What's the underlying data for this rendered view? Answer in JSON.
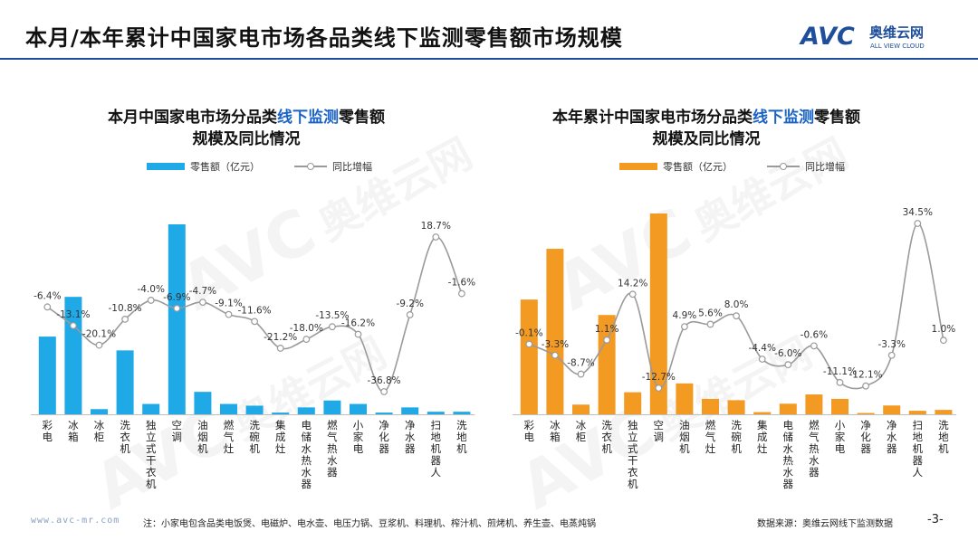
{
  "header": {
    "title": "本月/本年累计中国家电市场各品类线下监测零售额市场规模",
    "logo_mark": "AVC",
    "logo_cn": "奥维云网",
    "logo_en": "ALL VIEW CLOUD",
    "brand_color": "#1f4e9a"
  },
  "watermark": {
    "mark": "AVC",
    "cn": "奥维云网"
  },
  "charts": [
    {
      "title_pre": "本月中国家电市场分品类",
      "title_hl": "线下监测",
      "title_post": "零售额",
      "title_line2": "规模及同比情况",
      "legend_bar": "零售额（亿元）",
      "legend_line": "同比增幅",
      "bar_color": "#1fa9e6"
    },
    {
      "title_pre": "本年累计中国家电市场分品类",
      "title_hl": "线下监测",
      "title_post": "零售额",
      "title_line2": "规模及同比情况",
      "legend_bar": "零售额（亿元）",
      "legend_line": "同比增幅",
      "bar_color": "#f29a22"
    }
  ],
  "chart_data": [
    {
      "type": "bar",
      "categories": [
        "彩电",
        "冰箱",
        "冰柜",
        "洗衣机",
        "独立式干衣机",
        "空调",
        "油烟机",
        "燃气灶",
        "洗碗机",
        "集成灶",
        "电储水热水器",
        "燃气热水器",
        "小家电",
        "净化器",
        "净水器",
        "扫地机器人",
        "洗地机"
      ],
      "series": [
        {
          "name": "零售额（亿元）",
          "type": "bar",
          "color": "#1fa9e6",
          "values": [
            45,
            68,
            3,
            37,
            6,
            110,
            13,
            6,
            5,
            1,
            4,
            8,
            6,
            1,
            4,
            1.5,
            1.5
          ]
        },
        {
          "name": "同比增幅",
          "type": "line",
          "color": "#9a9a9a",
          "values": [
            -6.4,
            -13.1,
            -20.1,
            -10.8,
            -4.0,
            -6.9,
            -4.7,
            -9.1,
            -11.6,
            -21.2,
            -18.0,
            -13.5,
            -16.2,
            -36.8,
            -9.2,
            18.7,
            -1.6
          ],
          "labels": [
            "-6.4%",
            "-13.1%",
            "-20.1%",
            "-10.8%",
            "-4.0%",
            "-6.9%",
            "-4.7%",
            "-9.1%",
            "-11.6%",
            "-21.2%",
            "-18.0%",
            "-13.5%",
            "-16.2%",
            "-36.8%",
            "-9.2%",
            "18.7%",
            "-1.6%"
          ]
        }
      ]
    },
    {
      "type": "bar",
      "categories": [
        "彩电",
        "冰箱",
        "冰柜",
        "洗衣机",
        "独立式干衣机",
        "空调",
        "油烟机",
        "燃气灶",
        "洗碗机",
        "集成灶",
        "电储水热水器",
        "燃气热水器",
        "小家电",
        "净化器",
        "净水器",
        "扫地机器人",
        "洗地机"
      ],
      "series": [
        {
          "name": "零售额（亿元）",
          "type": "bar",
          "color": "#f29a22",
          "values": [
            260,
            375,
            22,
            225,
            50,
            455,
            70,
            35,
            32,
            5,
            24,
            45,
            35,
            3,
            20,
            8,
            10
          ]
        },
        {
          "name": "同比增幅",
          "type": "line",
          "color": "#9a9a9a",
          "values": [
            -0.1,
            -3.3,
            -8.7,
            1.1,
            14.2,
            -12.7,
            4.9,
            5.6,
            8.0,
            -4.4,
            -6.0,
            -0.6,
            -11.1,
            -12.1,
            -3.3,
            34.5,
            1.0
          ],
          "labels": [
            "-0.1%",
            "-3.3%",
            "-8.7%",
            "1.1%",
            "14.2%",
            "-12.7%",
            "4.9%",
            "5.6%",
            "8.0%",
            "-4.4%",
            "-6.0%",
            "-0.6%",
            "-11.1%",
            "-12.1%",
            "-3.3%",
            "34.5%",
            "1.0%"
          ]
        }
      ]
    }
  ],
  "footer": {
    "url": "www.avc-mr.com",
    "note": "注：小家电包含品类电饭煲、电磁炉、电水壶、电压力锅、豆浆机、料理机、榨汁机、煎烤机、养生壶、电蒸炖锅",
    "source": "数据来源：奥维云网线下监测数据",
    "page": "-3-"
  }
}
